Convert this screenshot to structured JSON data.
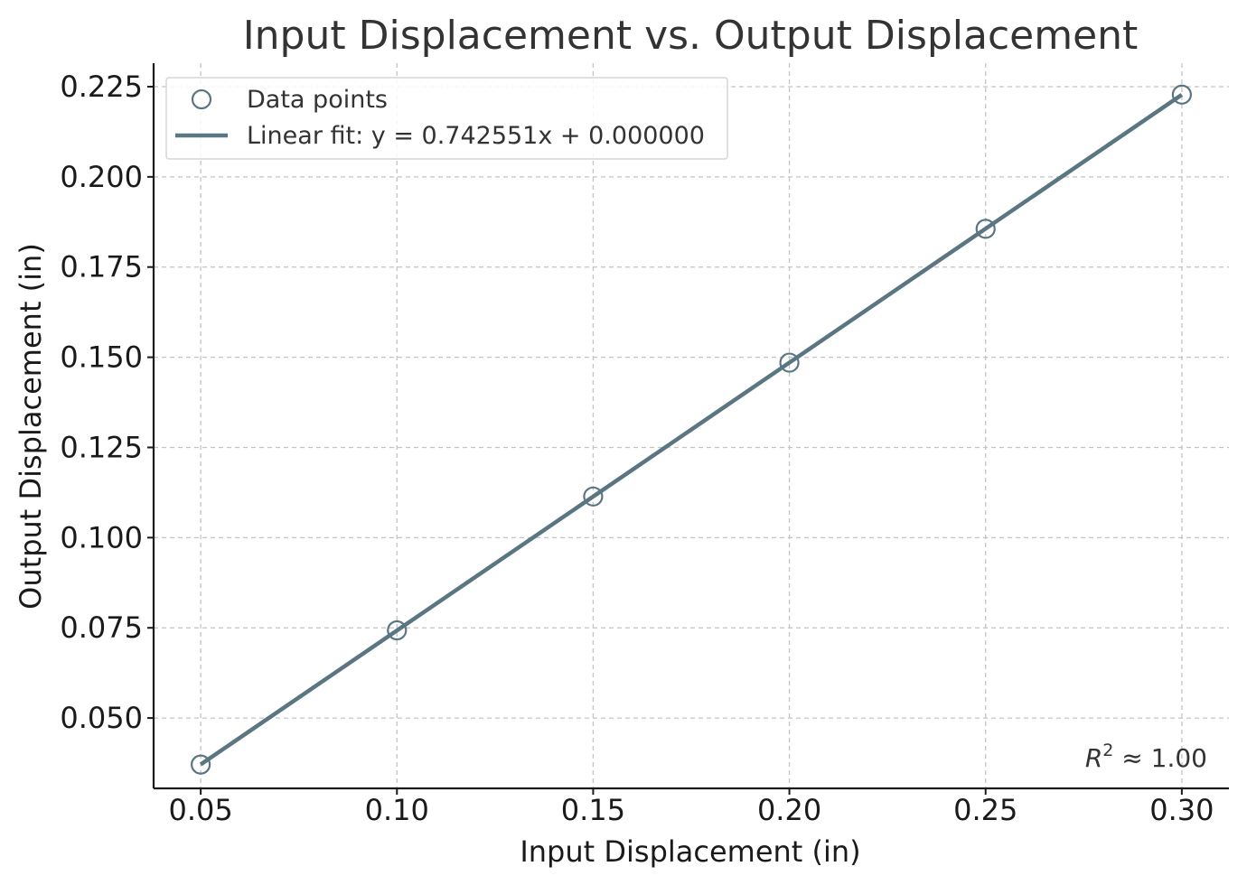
{
  "chart_data": {
    "type": "scatter",
    "title": "Input Displacement vs. Output Displacement",
    "xlabel": "Input Displacement (in)",
    "ylabel": "Output Displacement (in)",
    "xlim": [
      0.038,
      0.312
    ],
    "ylim": [
      0.0305,
      0.2315
    ],
    "xticks": [
      0.05,
      0.1,
      0.15,
      0.2,
      0.25,
      0.3
    ],
    "xtick_labels": [
      "0.05",
      "0.10",
      "0.15",
      "0.20",
      "0.25",
      "0.30"
    ],
    "yticks": [
      0.05,
      0.075,
      0.1,
      0.125,
      0.15,
      0.175,
      0.2,
      0.225
    ],
    "ytick_labels": [
      "0.050",
      "0.075",
      "0.100",
      "0.125",
      "0.150",
      "0.175",
      "0.200",
      "0.225"
    ],
    "grid": true,
    "legend_position": "top-left",
    "color": "#5b7683",
    "series": [
      {
        "name": "Data points",
        "kind": "scatter",
        "x": [
          0.05,
          0.1,
          0.15,
          0.2,
          0.25,
          0.3
        ],
        "y": [
          0.0371,
          0.0743,
          0.1114,
          0.1485,
          0.1856,
          0.2228
        ]
      },
      {
        "name": "Linear fit: y = 0.742551x + 0.000000",
        "kind": "line",
        "slope": 0.742551,
        "intercept": 0.0,
        "x_range": [
          0.05,
          0.3
        ]
      }
    ],
    "annotation": {
      "symbol": "R",
      "superscript": "2",
      "text": " ≈ 1.00",
      "position": "bottom-right"
    }
  }
}
